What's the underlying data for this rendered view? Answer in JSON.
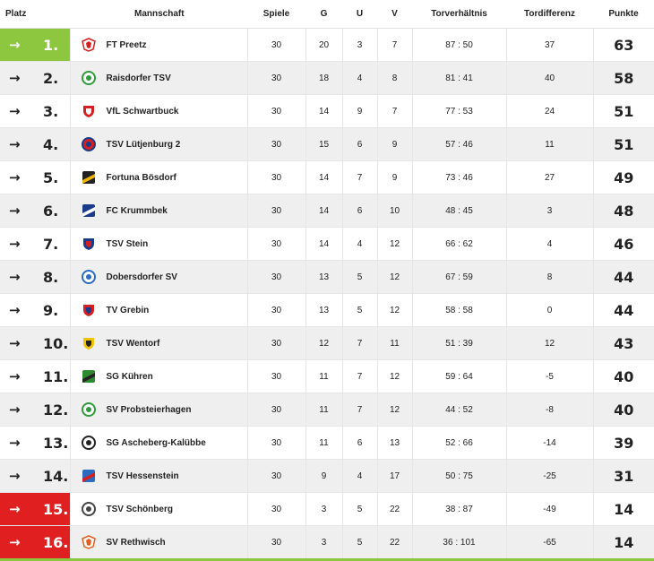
{
  "headers": {
    "platz": "Platz",
    "mannschaft": "Mannschaft",
    "spiele": "Spiele",
    "g": "G",
    "u": "U",
    "v": "V",
    "torverhaeltnis": "Torverhältnis",
    "tordifferenz": "Tordifferenz",
    "punkte": "Punkte"
  },
  "colors": {
    "promotion": "#8dc63f",
    "relegation": "#e02020"
  },
  "rows": [
    {
      "rank": "1.",
      "team": "FT Preetz",
      "spiele": "30",
      "g": "20",
      "u": "3",
      "v": "7",
      "tore": "87 : 50",
      "diff": "37",
      "punkte": "63",
      "zone": "promo",
      "logo": {
        "c1": "#d42020",
        "c2": "#ffffff",
        "shape": "badge"
      },
      "arrow": "right-arrow-icon"
    },
    {
      "rank": "2.",
      "team": "Raisdorfer TSV",
      "spiele": "30",
      "g": "18",
      "u": "4",
      "v": "8",
      "tore": "81 : 41",
      "diff": "40",
      "punkte": "58",
      "zone": "",
      "logo": {
        "c1": "#2e9a3c",
        "c2": "#ffffff",
        "shape": "circle"
      },
      "arrow": "right-arrow-icon"
    },
    {
      "rank": "3.",
      "team": "VfL Schwartbuck",
      "spiele": "30",
      "g": "14",
      "u": "9",
      "v": "7",
      "tore": "77 : 53",
      "diff": "24",
      "punkte": "51",
      "zone": "",
      "logo": {
        "c1": "#d42020",
        "c2": "#ffffff",
        "shape": "shield"
      },
      "arrow": "right-arrow-icon"
    },
    {
      "rank": "4.",
      "team": "TSV Lütjenburg 2",
      "spiele": "30",
      "g": "15",
      "u": "6",
      "v": "9",
      "tore": "57 : 46",
      "diff": "11",
      "punkte": "51",
      "zone": "",
      "logo": {
        "c1": "#1a3a8a",
        "c2": "#d42020",
        "shape": "circle"
      },
      "arrow": "right-arrow-icon"
    },
    {
      "rank": "5.",
      "team": "Fortuna Bösdorf",
      "spiele": "30",
      "g": "14",
      "u": "7",
      "v": "9",
      "tore": "73 : 46",
      "diff": "27",
      "punkte": "49",
      "zone": "",
      "logo": {
        "c1": "#222222",
        "c2": "#f0b400",
        "shape": "stripe"
      },
      "arrow": "right-arrow-icon"
    },
    {
      "rank": "6.",
      "team": "FC Krummbek",
      "spiele": "30",
      "g": "14",
      "u": "6",
      "v": "10",
      "tore": "48 : 45",
      "diff": "3",
      "punkte": "48",
      "zone": "",
      "logo": {
        "c1": "#1a3a8a",
        "c2": "#ffffff",
        "shape": "stripe"
      },
      "arrow": "right-arrow-icon"
    },
    {
      "rank": "7.",
      "team": "TSV Stein",
      "spiele": "30",
      "g": "14",
      "u": "4",
      "v": "12",
      "tore": "66 : 62",
      "diff": "4",
      "punkte": "46",
      "zone": "",
      "logo": {
        "c1": "#1a3a8a",
        "c2": "#d42020",
        "shape": "shield"
      },
      "arrow": "right-arrow-icon"
    },
    {
      "rank": "8.",
      "team": "Dobersdorfer SV",
      "spiele": "30",
      "g": "13",
      "u": "5",
      "v": "12",
      "tore": "67 : 59",
      "diff": "8",
      "punkte": "44",
      "zone": "",
      "logo": {
        "c1": "#2a6cc0",
        "c2": "#ffffff",
        "shape": "circle"
      },
      "arrow": "right-arrow-icon"
    },
    {
      "rank": "9.",
      "team": "TV Grebin",
      "spiele": "30",
      "g": "13",
      "u": "5",
      "v": "12",
      "tore": "58 : 58",
      "diff": "0",
      "punkte": "44",
      "zone": "",
      "logo": {
        "c1": "#d42020",
        "c2": "#1a3a8a",
        "shape": "shield"
      },
      "arrow": "right-arrow-icon"
    },
    {
      "rank": "10.",
      "team": "TSV Wentorf",
      "spiele": "30",
      "g": "12",
      "u": "7",
      "v": "11",
      "tore": "51 : 39",
      "diff": "12",
      "punkte": "43",
      "zone": "",
      "logo": {
        "c1": "#f0c400",
        "c2": "#222222",
        "shape": "shield"
      },
      "arrow": "right-arrow-icon"
    },
    {
      "rank": "11.",
      "team": "SG Kühren",
      "spiele": "30",
      "g": "11",
      "u": "7",
      "v": "12",
      "tore": "59 : 64",
      "diff": "-5",
      "punkte": "40",
      "zone": "",
      "logo": {
        "c1": "#2e8a2e",
        "c2": "#222222",
        "shape": "stripe"
      },
      "arrow": "right-arrow-icon"
    },
    {
      "rank": "12.",
      "team": "SV Probsteierhagen",
      "spiele": "30",
      "g": "11",
      "u": "7",
      "v": "12",
      "tore": "44 : 52",
      "diff": "-8",
      "punkte": "40",
      "zone": "",
      "logo": {
        "c1": "#2e9a3c",
        "c2": "#ffffff",
        "shape": "circle"
      },
      "arrow": "right-arrow-icon"
    },
    {
      "rank": "13.",
      "team": "SG Ascheberg-Kalübbe",
      "spiele": "30",
      "g": "11",
      "u": "6",
      "v": "13",
      "tore": "52 : 66",
      "diff": "-14",
      "punkte": "39",
      "zone": "",
      "logo": {
        "c1": "#222222",
        "c2": "#ffffff",
        "shape": "circle"
      },
      "arrow": "right-arrow-icon"
    },
    {
      "rank": "14.",
      "team": "TSV Hessenstein",
      "spiele": "30",
      "g": "9",
      "u": "4",
      "v": "17",
      "tore": "50 : 75",
      "diff": "-25",
      "punkte": "31",
      "zone": "",
      "logo": {
        "c1": "#2a6cc0",
        "c2": "#d42020",
        "shape": "stripe"
      },
      "arrow": "right-arrow-icon"
    },
    {
      "rank": "15.",
      "team": "TSV Schönberg",
      "spiele": "30",
      "g": "3",
      "u": "5",
      "v": "22",
      "tore": "38 : 87",
      "diff": "-49",
      "punkte": "14",
      "zone": "relegate",
      "logo": {
        "c1": "#444444",
        "c2": "#ffffff",
        "shape": "circle"
      },
      "arrow": "right-arrow-icon"
    },
    {
      "rank": "16.",
      "team": "SV Rethwisch",
      "spiele": "30",
      "g": "3",
      "u": "5",
      "v": "22",
      "tore": "36 : 101",
      "diff": "-65",
      "punkte": "14",
      "zone": "relegate",
      "logo": {
        "c1": "#e06020",
        "c2": "#ffffff",
        "shape": "badge"
      },
      "arrow": "right-arrow-icon"
    }
  ]
}
